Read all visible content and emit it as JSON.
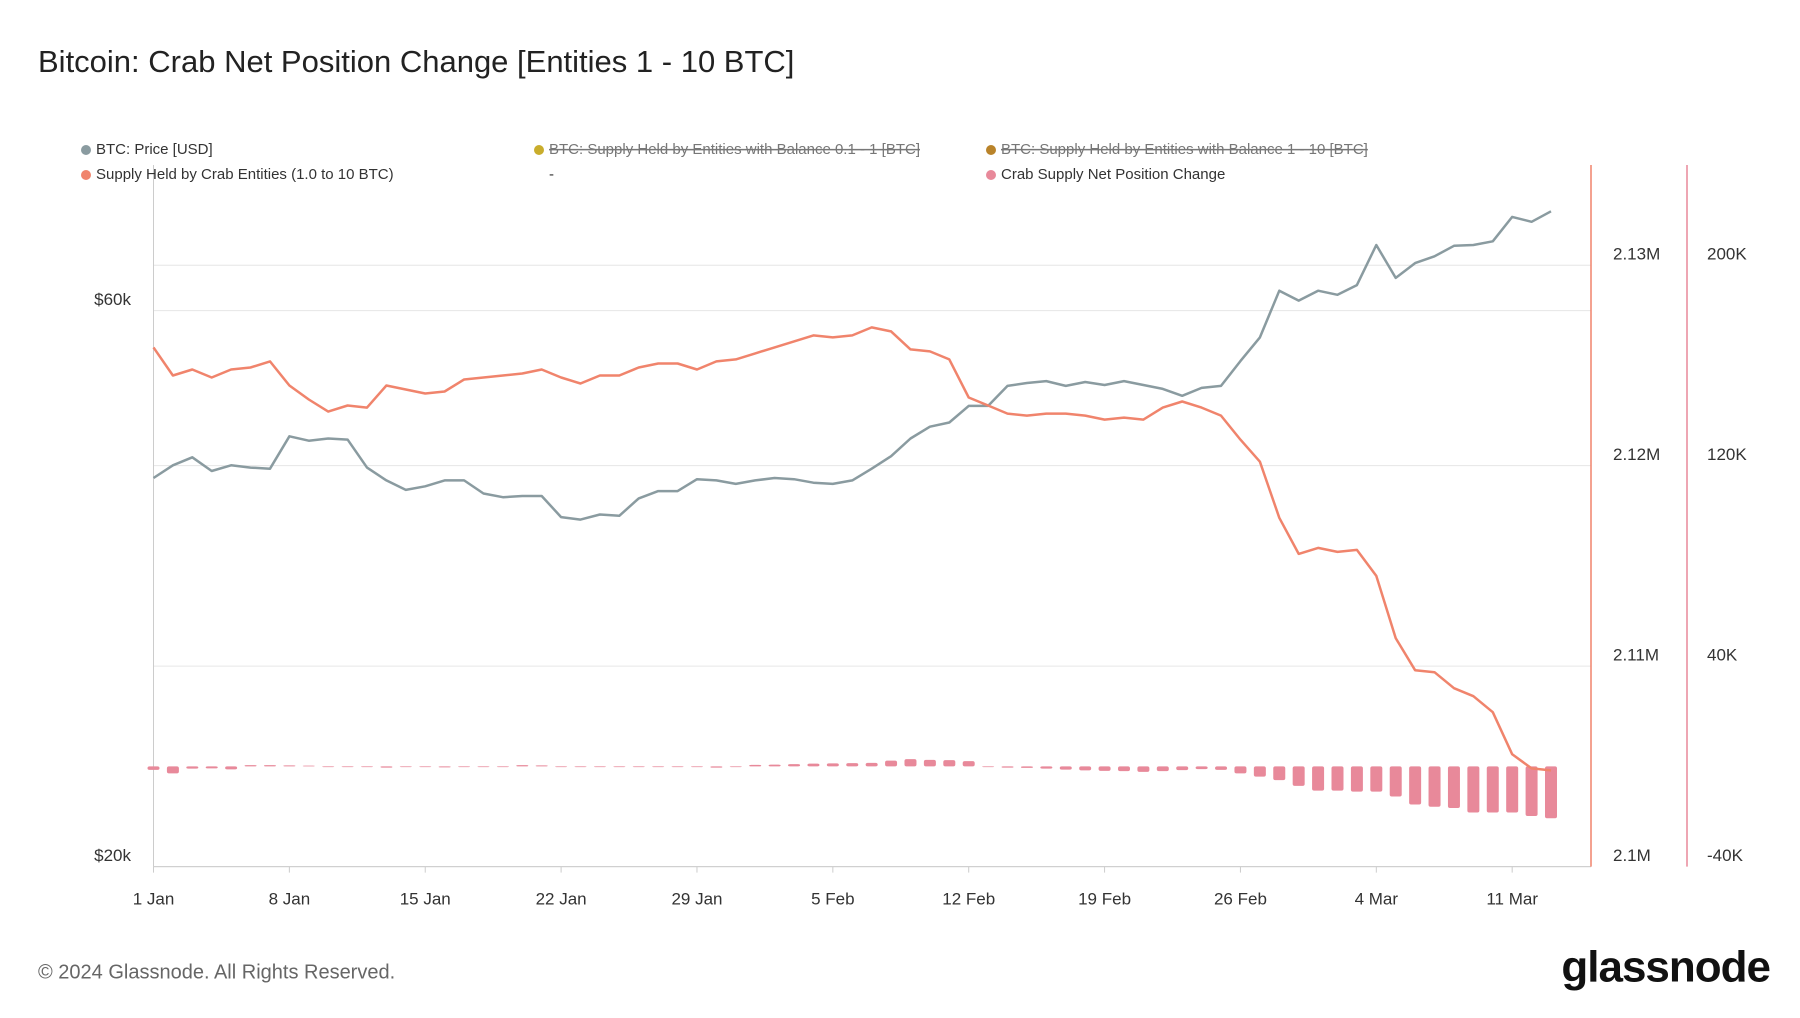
{
  "title": "Bitcoin: Crab Net Position Change [Entities 1 - 10 BTC]",
  "footer": "© 2024 Glassnode. All Rights Reserved.",
  "brand": "glassnode",
  "chart_data": {
    "type": "combo",
    "categories": [
      "1 Jan",
      null,
      null,
      null,
      null,
      null,
      null,
      "8 Jan",
      null,
      null,
      null,
      null,
      null,
      null,
      "15 Jan",
      null,
      null,
      null,
      null,
      null,
      null,
      "22 Jan",
      null,
      null,
      null,
      null,
      null,
      null,
      "29 Jan",
      null,
      null,
      null,
      null,
      null,
      null,
      "5 Feb",
      null,
      null,
      null,
      null,
      null,
      null,
      "12 Feb",
      null,
      null,
      null,
      null,
      null,
      null,
      "19 Feb",
      null,
      null,
      null,
      null,
      null,
      null,
      "26 Feb",
      null,
      null,
      null,
      null,
      null,
      null,
      "4 Mar",
      null,
      null,
      null,
      null,
      null,
      null,
      "11 Mar",
      null,
      null
    ],
    "yscale": "log",
    "ylim": [
      20000,
      80000
    ],
    "yticks": [
      {
        "value": 20000,
        "label": "$20k"
      },
      {
        "value": 60000,
        "label": "$60k"
      }
    ],
    "y2lim": [
      2100000,
      2135000
    ],
    "y2ticks": [
      {
        "value": 2100000,
        "label": "2.1M"
      },
      {
        "value": 2110000,
        "label": "2.11M"
      },
      {
        "value": 2120000,
        "label": "2.12M"
      },
      {
        "value": 2130000,
        "label": "2.13M"
      }
    ],
    "y3lim": [
      -40000,
      240000
    ],
    "y3ticks": [
      {
        "value": -40000,
        "label": "-40K"
      },
      {
        "value": 40000,
        "label": "40K"
      },
      {
        "value": 120000,
        "label": "120K"
      },
      {
        "value": 200000,
        "label": "200K"
      }
    ],
    "grid": true,
    "series": [
      {
        "name": "BTC: Price [USD]",
        "type": "line",
        "axis": "y",
        "color": "#8a9ba0",
        "values": [
          43100,
          44200,
          44900,
          43700,
          44200,
          44000,
          43900,
          46800,
          46400,
          46600,
          46500,
          44000,
          42900,
          42100,
          42400,
          42900,
          42900,
          41800,
          41500,
          41600,
          41600,
          39900,
          39700,
          40100,
          40000,
          41400,
          42000,
          42000,
          43000,
          42900,
          42600,
          42900,
          43100,
          43000,
          42700,
          42600,
          42900,
          43900,
          45000,
          46600,
          47700,
          48100,
          49700,
          49700,
          51700,
          52000,
          52200,
          51700,
          52100,
          51800,
          52200,
          51800,
          51400,
          50700,
          51500,
          51700,
          54300,
          56900,
          62400,
          61200,
          62400,
          61900,
          63100,
          68300,
          64000,
          65900,
          66800,
          68200,
          68300,
          68800,
          72200,
          71500,
          73000
        ]
      },
      {
        "name": "Supply Held by Crab Entities (1.0 to 10 BTC)",
        "type": "line",
        "axis": "y2",
        "color": "#f0846c",
        "values": [
          2125900,
          2124500,
          2124800,
          2124400,
          2124800,
          2124900,
          2125200,
          2124000,
          2123300,
          2122700,
          2123000,
          2122900,
          2124000,
          2123800,
          2123600,
          2123700,
          2124300,
          2124400,
          2124500,
          2124600,
          2124800,
          2124400,
          2124100,
          2124500,
          2124500,
          2124900,
          2125100,
          2125100,
          2124800,
          2125200,
          2125300,
          2125600,
          2125900,
          2126200,
          2126500,
          2126400,
          2126500,
          2126900,
          2126700,
          2125800,
          2125700,
          2125300,
          2123400,
          2123000,
          2122600,
          2122500,
          2122600,
          2122600,
          2122500,
          2122300,
          2122400,
          2122300,
          2122900,
          2123200,
          2122900,
          2122500,
          2121300,
          2120200,
          2117400,
          2115600,
          2115900,
          2115700,
          2115800,
          2114500,
          2111400,
          2109800,
          2109700,
          2108900,
          2108500,
          2107700,
          2105600,
          2104900,
          2104800
        ]
      },
      {
        "name": "Crab Supply Net Position Change",
        "type": "bar",
        "axis": "y3",
        "color": "#e8899a",
        "values": [
          -1400,
          -2800,
          -900,
          -800,
          -1200,
          500,
          500,
          400,
          300,
          0,
          0,
          -300,
          -500,
          -300,
          0,
          -400,
          0,
          -300,
          -300,
          500,
          400,
          -200,
          0,
          -300,
          -200,
          0,
          -300,
          -300,
          0,
          -500,
          0,
          600,
          700,
          900,
          1100,
          1200,
          1300,
          1400,
          2300,
          2900,
          2600,
          2500,
          2100,
          0,
          -500,
          -600,
          -900,
          -1300,
          -1600,
          -1800,
          -1900,
          -2200,
          -1900,
          -1500,
          -1100,
          -1400,
          -2800,
          -4100,
          -5500,
          -7800,
          -9700,
          -9700,
          -10100,
          -10100,
          -12000,
          -15200,
          -16100,
          -16600,
          -18400,
          -18400,
          -18400,
          -19800,
          -20700
        ]
      }
    ],
    "hidden_series": [
      {
        "name": "BTC: Supply Held by Entities with Balance 0.1 - 1 [BTC]",
        "color": "#c9ad2c"
      },
      {
        "name": "BTC: Supply Held by Entities with Balance 1 - 10 [BTC]",
        "color": "#b9832a"
      }
    ],
    "legend_extra": "-"
  }
}
